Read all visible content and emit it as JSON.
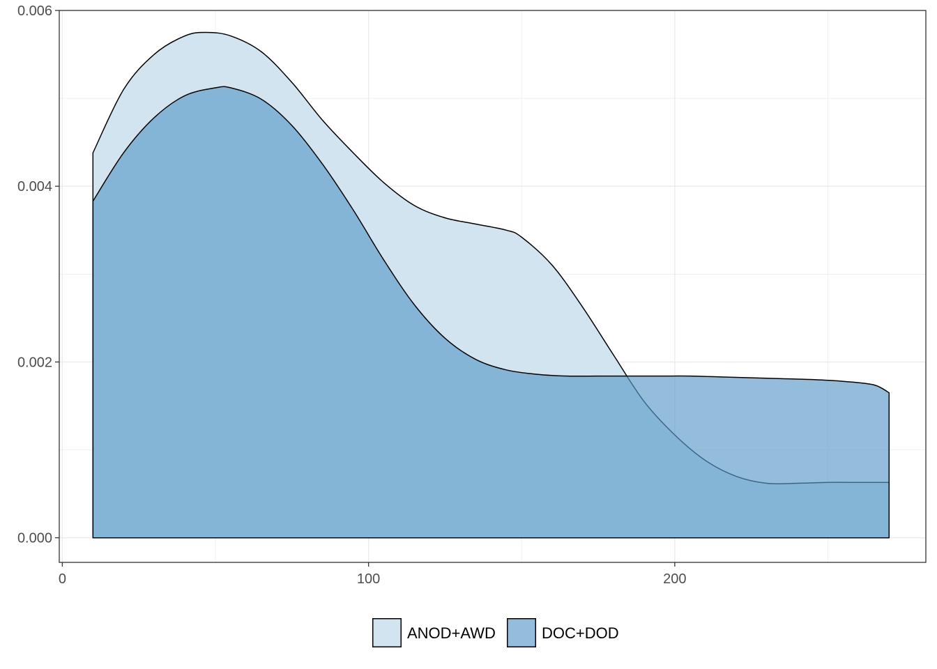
{
  "chart_data": {
    "type": "area",
    "title": "",
    "xlabel": "",
    "ylabel": "",
    "xlim": [
      -1,
      282
    ],
    "ylim": [
      -0.00028,
      0.006
    ],
    "x_ticks": [
      0,
      100,
      200
    ],
    "x_tick_labels": [
      "0",
      "100",
      "200"
    ],
    "y_ticks": [
      0,
      0.002,
      0.004,
      0.006
    ],
    "y_tick_labels": [
      "0.000",
      "0.002",
      "0.004",
      "0.006"
    ],
    "grid": true,
    "legend_position": "bottom",
    "series": [
      {
        "name": "ANOD+AWD",
        "color": "#d2e4ef",
        "opacity": 1,
        "x": [
          10,
          20,
          30,
          40,
          47,
          55,
          65,
          75,
          85,
          95,
          105,
          115,
          125,
          135,
          145,
          150,
          160,
          170,
          180,
          190,
          200,
          210,
          220,
          230,
          240,
          250,
          260,
          270
        ],
        "values": [
          0.00438,
          0.0051,
          0.0055,
          0.00571,
          0.00575,
          0.00571,
          0.00553,
          0.00518,
          0.00475,
          0.00438,
          0.00404,
          0.00378,
          0.00364,
          0.00357,
          0.0035,
          0.00342,
          0.0031,
          0.00262,
          0.00208,
          0.00155,
          0.00117,
          0.00088,
          0.0007,
          0.00062,
          0.00062,
          0.00063,
          0.00063,
          0.00063
        ]
      },
      {
        "name": "DOC+DOD",
        "color": "#5b9bc8",
        "opacity": 0.66,
        "x": [
          10,
          20,
          30,
          40,
          50,
          55,
          65,
          75,
          85,
          95,
          105,
          115,
          125,
          135,
          145,
          155,
          165,
          175,
          185,
          195,
          205,
          215,
          225,
          235,
          245,
          255,
          265,
          270
        ],
        "values": [
          0.00383,
          0.00438,
          0.00478,
          0.00503,
          0.00512,
          0.00512,
          0.00499,
          0.00469,
          0.00425,
          0.00373,
          0.00316,
          0.00265,
          0.00227,
          0.00203,
          0.00191,
          0.00186,
          0.00184,
          0.00184,
          0.00184,
          0.00184,
          0.00184,
          0.00183,
          0.00182,
          0.00181,
          0.0018,
          0.00178,
          0.00174,
          0.00165
        ]
      }
    ]
  }
}
